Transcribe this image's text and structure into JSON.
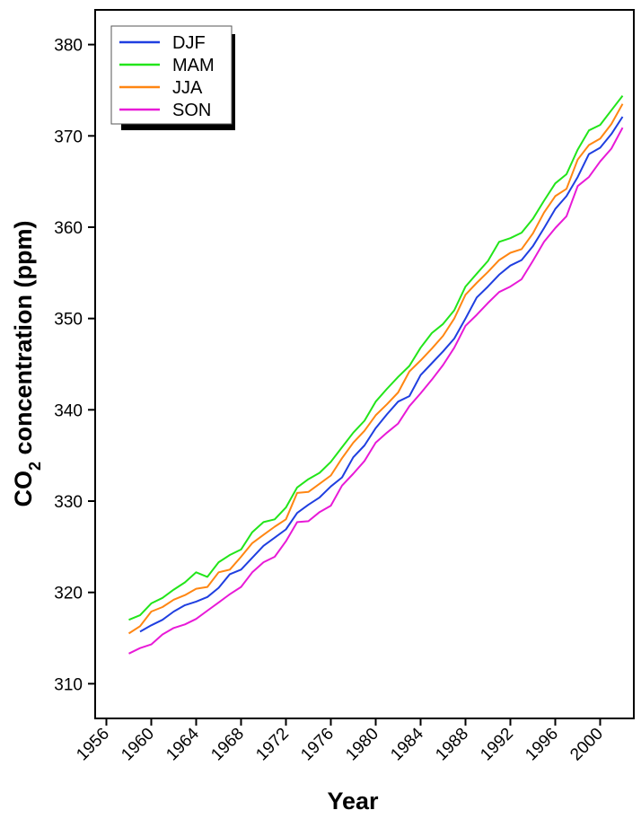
{
  "chart_data": {
    "type": "line",
    "xlabel": "Year",
    "ylabel_main": "CO",
    "ylabel_sub": "2",
    "ylabel_rest": " concentration (ppm)",
    "xlim": [
      1955,
      2003
    ],
    "ylim": [
      306.2,
      383.8
    ],
    "x_ticks": [
      1956,
      1960,
      1964,
      1968,
      1972,
      1976,
      1980,
      1984,
      1988,
      1992,
      1996,
      2000
    ],
    "y_ticks": [
      310,
      320,
      330,
      340,
      350,
      360,
      370,
      380
    ],
    "grid": false,
    "legend_position": "top-left",
    "series": [
      {
        "name": "DJF",
        "color": "#1f3fe0",
        "x": [
          1959,
          1960,
          1961,
          1962,
          1963,
          1964,
          1965,
          1966,
          1967,
          1968,
          1969,
          1970,
          1971,
          1972,
          1973,
          1974,
          1975,
          1976,
          1977,
          1978,
          1979,
          1980,
          1981,
          1982,
          1983,
          1984,
          1985,
          1986,
          1987,
          1988,
          1989,
          1990,
          1991,
          1992,
          1993,
          1994,
          1995,
          1996,
          1997,
          1998,
          1999,
          2000,
          2001,
          2002
        ],
        "y": [
          315.7,
          316.4,
          317.0,
          317.9,
          318.6,
          319.0,
          319.5,
          320.5,
          322.0,
          322.5,
          323.8,
          325.1,
          326.0,
          326.9,
          328.7,
          329.6,
          330.4,
          331.6,
          332.6,
          334.8,
          336.1,
          338.0,
          339.5,
          340.9,
          341.5,
          343.8,
          345.1,
          346.4,
          347.8,
          350.0,
          352.3,
          353.5,
          354.8,
          355.8,
          356.4,
          357.9,
          359.9,
          362.0,
          363.4,
          365.5,
          368.0,
          368.7,
          370.2,
          372.1
        ]
      },
      {
        "name": "MAM",
        "color": "#22e51a",
        "x": [
          1958,
          1959,
          1960,
          1961,
          1962,
          1963,
          1964,
          1965,
          1966,
          1967,
          1968,
          1969,
          1970,
          1971,
          1972,
          1973,
          1974,
          1975,
          1976,
          1977,
          1978,
          1979,
          1980,
          1981,
          1982,
          1983,
          1984,
          1985,
          1986,
          1987,
          1988,
          1989,
          1990,
          1991,
          1992,
          1993,
          1994,
          1995,
          1996,
          1997,
          1998,
          1999,
          2000,
          2001,
          2002
        ],
        "y": [
          317.0,
          317.5,
          318.8,
          319.4,
          320.3,
          321.1,
          322.2,
          321.7,
          323.3,
          324.1,
          324.7,
          326.6,
          327.7,
          328.0,
          329.3,
          331.5,
          332.4,
          333.1,
          334.3,
          335.9,
          337.5,
          338.8,
          340.9,
          342.3,
          343.6,
          344.8,
          346.8,
          348.4,
          349.4,
          350.9,
          353.5,
          354.9,
          356.3,
          358.4,
          358.8,
          359.4,
          360.9,
          362.9,
          364.8,
          365.8,
          368.5,
          370.6,
          371.2,
          372.8,
          374.4
        ]
      },
      {
        "name": "JJA",
        "color": "#ff8612",
        "x": [
          1958,
          1959,
          1960,
          1961,
          1962,
          1963,
          1964,
          1965,
          1966,
          1967,
          1968,
          1969,
          1970,
          1971,
          1972,
          1973,
          1974,
          1975,
          1976,
          1977,
          1978,
          1979,
          1980,
          1981,
          1982,
          1983,
          1984,
          1985,
          1986,
          1987,
          1988,
          1989,
          1990,
          1991,
          1992,
          1993,
          1994,
          1995,
          1996,
          1997,
          1998,
          1999,
          2000,
          2001,
          2002
        ],
        "y": [
          315.5,
          316.3,
          317.9,
          318.4,
          319.2,
          319.7,
          320.4,
          320.6,
          322.2,
          322.5,
          323.9,
          325.4,
          326.3,
          327.2,
          328.0,
          330.9,
          331.0,
          331.9,
          332.8,
          334.7,
          336.4,
          337.7,
          339.4,
          340.6,
          341.9,
          344.2,
          345.4,
          346.7,
          348.1,
          350.0,
          352.6,
          353.9,
          355.1,
          356.4,
          357.2,
          357.6,
          359.3,
          361.6,
          363.4,
          364.2,
          367.4,
          369.0,
          369.7,
          371.3,
          373.5
        ]
      },
      {
        "name": "SON",
        "color": "#e81ad7",
        "x": [
          1958,
          1959,
          1960,
          1961,
          1962,
          1963,
          1964,
          1965,
          1966,
          1967,
          1968,
          1969,
          1970,
          1971,
          1972,
          1973,
          1974,
          1975,
          1976,
          1977,
          1978,
          1979,
          1980,
          1981,
          1982,
          1983,
          1984,
          1985,
          1986,
          1987,
          1988,
          1989,
          1990,
          1991,
          1992,
          1993,
          1994,
          1995,
          1996,
          1997,
          1998,
          1999,
          2000,
          2001,
          2002
        ],
        "y": [
          313.3,
          313.9,
          314.3,
          315.4,
          316.1,
          316.5,
          317.1,
          318.0,
          318.9,
          319.8,
          320.6,
          322.2,
          323.3,
          323.9,
          325.6,
          327.7,
          327.8,
          328.8,
          329.5,
          331.7,
          333.0,
          334.4,
          336.4,
          337.5,
          338.5,
          340.4,
          341.8,
          343.3,
          344.9,
          346.8,
          349.2,
          350.4,
          351.7,
          352.9,
          353.5,
          354.3,
          356.3,
          358.4,
          359.9,
          361.2,
          364.5,
          365.5,
          367.2,
          368.6,
          370.9
        ]
      }
    ]
  }
}
